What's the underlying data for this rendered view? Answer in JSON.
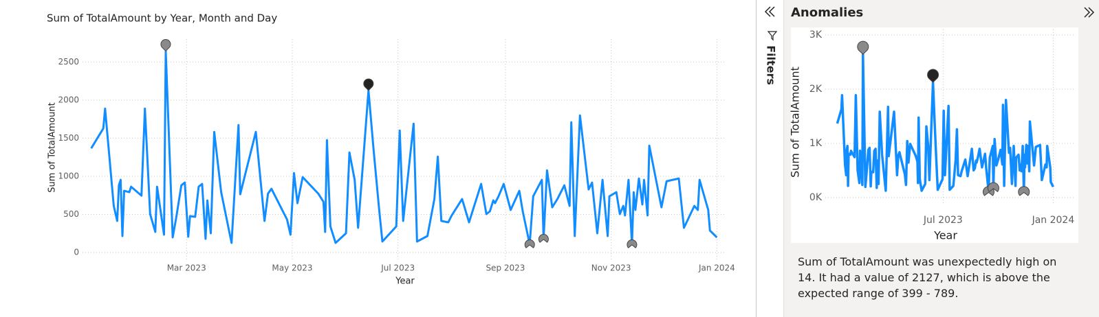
{
  "chart_data": [
    {
      "type": "line",
      "title": "Sum of TotalAmount by Year, Month and Day",
      "xlabel": "Year",
      "ylabel": "Sum of TotalAmount",
      "xlim": [
        0,
        371
      ],
      "ylim": [
        0,
        2800
      ],
      "xticks": [
        {
          "value": 60,
          "label": "Mar 2023"
        },
        {
          "value": 121,
          "label": "May 2023"
        },
        {
          "value": 182,
          "label": "Jul 2023"
        },
        {
          "value": 244,
          "label": "Sep 2023"
        },
        {
          "value": 305,
          "label": "Nov 2023"
        },
        {
          "value": 366,
          "label": "Jan 2024"
        }
      ],
      "yticks": [
        0,
        500,
        1000,
        1500,
        2000,
        2500
      ],
      "grid": true,
      "series": [
        {
          "name": "Sum of TotalAmount",
          "color": "#118dff",
          "x": [
            5,
            12,
            13,
            18,
            20,
            21,
            22,
            23,
            24,
            27,
            28,
            34,
            36,
            39,
            42,
            43,
            47,
            48,
            52,
            54,
            57,
            59,
            61,
            62,
            65,
            67,
            69,
            71,
            72,
            74,
            76,
            80,
            86,
            90,
            91,
            100,
            105,
            107,
            109,
            110,
            118,
            120,
            122,
            124,
            127,
            136,
            139,
            140,
            141,
            143,
            146,
            152,
            154,
            157,
            159,
            165,
            168,
            171,
            173,
            181,
            183,
            185,
            191,
            193,
            199,
            203,
            205,
            207,
            211,
            213,
            219,
            223,
            230,
            233,
            235,
            237,
            238,
            240,
            243,
            247,
            252,
            254,
            258,
            260,
            265,
            266,
            268,
            271,
            274,
            278,
            281,
            282,
            284,
            287,
            292,
            294,
            297,
            300,
            303,
            304,
            308,
            310,
            312,
            313,
            315,
            317,
            318,
            319,
            321,
            323,
            324,
            326,
            327,
            334,
            337,
            344,
            347,
            353,
            355,
            356,
            361,
            362,
            366
          ],
          "values": [
            1367,
            1628,
            1888,
            611,
            414,
            881,
            953,
            216,
            809,
            791,
            863,
            746,
            1888,
            504,
            270,
            863,
            234,
            2644,
            198,
            450,
            881,
            917,
            207,
            477,
            468,
            863,
            899,
            180,
            683,
            252,
            1583,
            791,
            126,
            1673,
            764,
            1583,
            414,
            773,
            836,
            791,
            432,
            234,
            1043,
            647,
            989,
            773,
            665,
            270,
            1475,
            342,
            126,
            252,
            1313,
            953,
            324,
            2127,
            1331,
            593,
            144,
            342,
            1601,
            414,
            1691,
            144,
            216,
            701,
            1259,
            414,
            396,
            486,
            701,
            396,
            899,
            504,
            540,
            683,
            647,
            737,
            899,
            558,
            809,
            540,
            108,
            737,
            953,
            180,
            1079,
            593,
            701,
            881,
            611,
            1709,
            216,
            1799,
            827,
            917,
            252,
            953,
            216,
            737,
            791,
            504,
            611,
            486,
            953,
            108,
            791,
            558,
            971,
            630,
            953,
            486,
            1403,
            593,
            935,
            971,
            324,
            611,
            558,
            953,
            558,
            288,
            198
          ]
        }
      ],
      "anomalies": {
        "x": [
          48,
          165,
          258,
          266,
          317
        ],
        "values": [
          2644,
          2127,
          108,
          180,
          108
        ]
      },
      "anomaly_color": "#8a8a8a",
      "selected_color": "#252423",
      "selected": 165
    },
    {
      "type": "line",
      "xlabel": "Year",
      "ylabel": "Sum of TotalAmount",
      "xlim": [
        -15,
        400
      ],
      "ylim": [
        0,
        3100
      ],
      "xticks": [
        {
          "value": 182,
          "label": "Jul 2023"
        },
        {
          "value": 366,
          "label": "Jan 2024"
        }
      ],
      "yticks": [
        {
          "value": 0,
          "label": "0K"
        },
        {
          "value": 1000,
          "label": "1K"
        },
        {
          "value": 2000,
          "label": "2K"
        },
        {
          "value": 3000,
          "label": "3K"
        }
      ],
      "grid": true
    }
  ],
  "filters_label": "Filters",
  "anomalies_panel": {
    "title": "Anomalies",
    "description": "Sum of TotalAmount was unexpectedly high on 14. It had a value of 2127, which is above the expected range of 399 - 789."
  }
}
